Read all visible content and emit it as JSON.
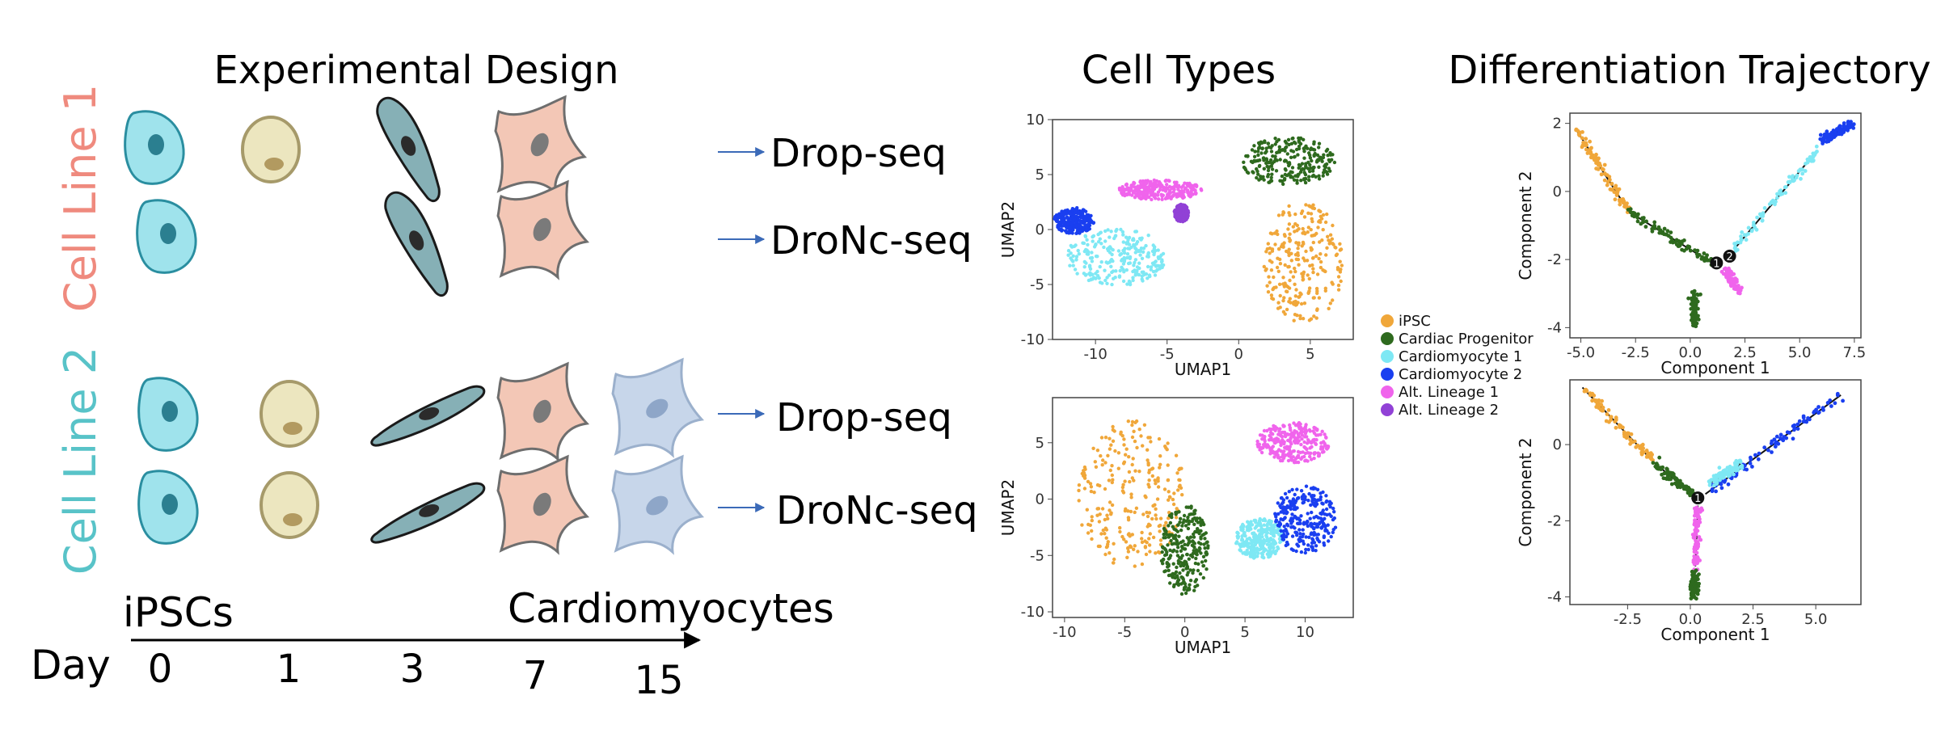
{
  "titles": {
    "experimental_design": "Experimental Design",
    "cell_types": "Cell Types",
    "trajectory": "Differentiation Trajectory"
  },
  "cell_lines": {
    "line1": "Cell Line 1",
    "line2": "Cell Line 2",
    "line1_color": "#ef8a7e",
    "line2_color": "#58c3c8"
  },
  "protocols": {
    "l1_top": "Drop-seq",
    "l1_bottom": "DroNc-seq",
    "l2_top": "Drop-seq",
    "l2_bottom": "DroNc-seq"
  },
  "timeline": {
    "start_label": "iPSCs",
    "end_label": "Cardiomyocytes",
    "day_label": "Day",
    "days": [
      "0",
      "1",
      "3",
      "7",
      "15"
    ]
  },
  "legend": [
    {
      "name": "iPSC",
      "color": "#f0a73a"
    },
    {
      "name": "Cardiac Progenitor",
      "color": "#2e6a1e"
    },
    {
      "name": "Cardiomyocyte 1",
      "color": "#7ee8f4"
    },
    {
      "name": "Cardiomyocyte 2",
      "color": "#1a3ff0"
    },
    {
      "name": "Alt. Lineage 1",
      "color": "#f064ec"
    },
    {
      "name": "Alt. Lineage 2",
      "color": "#9141d6"
    }
  ],
  "chart_data": [
    {
      "id": "umap-top",
      "type": "scatter",
      "xlabel": "UMAP1",
      "ylabel": "UMAP2",
      "xlim": [
        -13,
        8
      ],
      "ylim": [
        -10,
        10
      ],
      "xticks": [
        -10,
        -5,
        0,
        5
      ],
      "yticks": [
        -10,
        -5,
        0,
        5,
        10
      ],
      "clusters": [
        {
          "name": "iPSC",
          "cx": 4.5,
          "cy": -3,
          "rx": 2.8,
          "ry": 5.5
        },
        {
          "name": "Cardiac Progenitor",
          "cx": 3.5,
          "cy": 6.2,
          "rx": 3.3,
          "ry": 2.2
        },
        {
          "name": "Cardiomyocyte 1",
          "cx": -8.5,
          "cy": -2.5,
          "rx": 3.5,
          "ry": 2.6
        },
        {
          "name": "Cardiomyocyte 2",
          "cx": -11.5,
          "cy": 0.8,
          "rx": 1.4,
          "ry": 1.2
        },
        {
          "name": "Alt. Lineage 1",
          "cx": -5.5,
          "cy": 3.6,
          "rx": 3.0,
          "ry": 0.9
        },
        {
          "name": "Alt. Lineage 2",
          "cx": -4.0,
          "cy": 1.5,
          "rx": 0.5,
          "ry": 0.8
        }
      ]
    },
    {
      "id": "umap-bottom",
      "type": "scatter",
      "xlabel": "UMAP1",
      "ylabel": "UMAP2",
      "xlim": [
        -11,
        14
      ],
      "ylim": [
        -10.5,
        9
      ],
      "xticks": [
        -10,
        -5,
        0,
        5,
        10
      ],
      "yticks": [
        -10,
        -5,
        0,
        5
      ],
      "clusters": [
        {
          "name": "iPSC",
          "cx": -4.5,
          "cy": 0.5,
          "rx": 4.5,
          "ry": 6.5
        },
        {
          "name": "Cardiac Progenitor",
          "cx": 0.0,
          "cy": -4.5,
          "rx": 2.0,
          "ry": 4.0
        },
        {
          "name": "Cardiomyocyte 1",
          "cx": 6.2,
          "cy": -3.5,
          "rx": 2.0,
          "ry": 1.8
        },
        {
          "name": "Cardiomyocyte 2",
          "cx": 10.0,
          "cy": -1.8,
          "rx": 2.6,
          "ry": 3.0
        },
        {
          "name": "Alt. Lineage 1",
          "cx": 9.0,
          "cy": 5.0,
          "rx": 3.0,
          "ry": 1.8
        }
      ]
    },
    {
      "id": "trajectory-top",
      "type": "scatter",
      "xlabel": "Component 1",
      "ylabel": "Component 2",
      "xlim": [
        -5.5,
        7.8
      ],
      "ylim": [
        -4.3,
        2.3
      ],
      "xticks": [
        -5.0,
        -2.5,
        0.0,
        2.5,
        5.0,
        7.5
      ],
      "yticks": [
        -4,
        -2,
        0,
        2
      ],
      "branch_points": [
        {
          "label": "1",
          "x": 1.2,
          "y": -2.1
        },
        {
          "label": "2",
          "x": 1.8,
          "y": -1.9
        }
      ],
      "branches": [
        {
          "name": "iPSC",
          "from": [
            -5.2,
            1.8
          ],
          "to": [
            -2.8,
            -0.6
          ]
        },
        {
          "name": "Cardiac Progenitor",
          "from": [
            -2.8,
            -0.6
          ],
          "to": [
            1.0,
            -2.1
          ]
        },
        {
          "name": "Cardiac Progenitor",
          "from": [
            0.2,
            -3.0
          ],
          "to": [
            0.2,
            -4.0
          ]
        },
        {
          "name": "Alt. Lineage 1",
          "from": [
            1.6,
            -2.3
          ],
          "to": [
            2.2,
            -2.9
          ]
        },
        {
          "name": "Cardiomyocyte 1",
          "from": [
            2.0,
            -1.7
          ],
          "to": [
            5.8,
            1.2
          ]
        },
        {
          "name": "Cardiomyocyte 2",
          "from": [
            6.0,
            1.5
          ],
          "to": [
            7.4,
            2.0
          ]
        }
      ]
    },
    {
      "id": "trajectory-bottom",
      "type": "scatter",
      "xlabel": "Component 1",
      "ylabel": "Component 2",
      "xlim": [
        -4.8,
        6.8
      ],
      "ylim": [
        -4.2,
        1.7
      ],
      "xticks": [
        -2.5,
        0.0,
        2.5,
        5.0
      ],
      "yticks": [
        -4,
        -2,
        0
      ],
      "branch_points": [
        {
          "label": "1",
          "x": 0.3,
          "y": -1.4
        }
      ],
      "branches": [
        {
          "name": "iPSC",
          "from": [
            -4.3,
            1.5
          ],
          "to": [
            -1.4,
            -0.5
          ]
        },
        {
          "name": "Cardiac Progenitor",
          "from": [
            -1.4,
            -0.5
          ],
          "to": [
            0.1,
            -1.3
          ]
        },
        {
          "name": "Alt. Lineage 1",
          "from": [
            0.3,
            -1.6
          ],
          "to": [
            0.2,
            -3.2
          ]
        },
        {
          "name": "Cardiac Progenitor",
          "from": [
            0.2,
            -3.3
          ],
          "to": [
            0.1,
            -4.0
          ]
        },
        {
          "name": "Cardiomyocyte 2",
          "from": [
            0.6,
            -1.3
          ],
          "to": [
            6.0,
            1.3
          ]
        },
        {
          "name": "Cardiomyocyte 1",
          "from": [
            0.8,
            -1.0
          ],
          "to": [
            2.0,
            -0.5
          ]
        }
      ]
    }
  ]
}
